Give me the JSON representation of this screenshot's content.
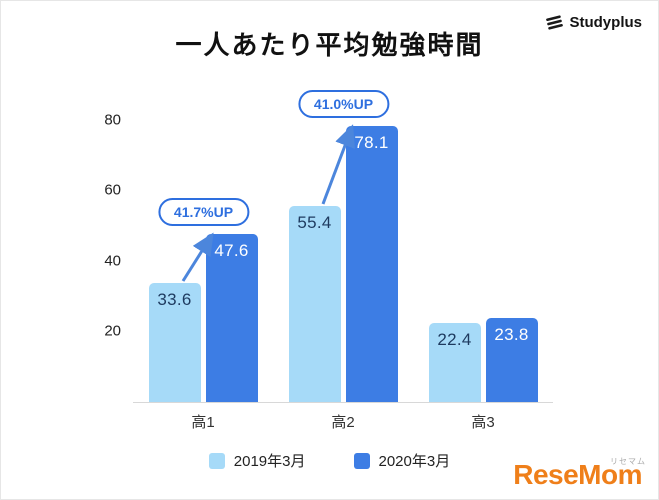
{
  "header": {
    "title": "一人あたり平均勉強時間"
  },
  "brands": {
    "studyplus": {
      "label": "Studyplus"
    },
    "resemom": {
      "label": "ReseMom",
      "sub": "リセマム"
    }
  },
  "chart_data": {
    "type": "bar",
    "title": "一人あたり平均勉強時間",
    "categories": [
      "高1",
      "高2",
      "高3"
    ],
    "series": [
      {
        "name": "2019年3月",
        "color": "#A6DAF8",
        "value_label_color": "#1E3A5F",
        "values": [
          33.6,
          55.4,
          22.4
        ]
      },
      {
        "name": "2020年3月",
        "color": "#3D7DE4",
        "value_label_color": "#FFFFFF",
        "values": [
          47.6,
          78.1,
          23.8
        ]
      }
    ],
    "annotations": [
      {
        "category_index": 0,
        "label": "41.7%UP"
      },
      {
        "category_index": 1,
        "label": "41.0%UP"
      }
    ],
    "annotation_color": "#2E6FDF",
    "arrow_color": "#4C86DC",
    "yticks": [
      20,
      40,
      60,
      80
    ],
    "ylim": [
      0,
      85
    ],
    "grid": false,
    "legend_position": "bottom",
    "xlabel": "",
    "ylabel": ""
  }
}
